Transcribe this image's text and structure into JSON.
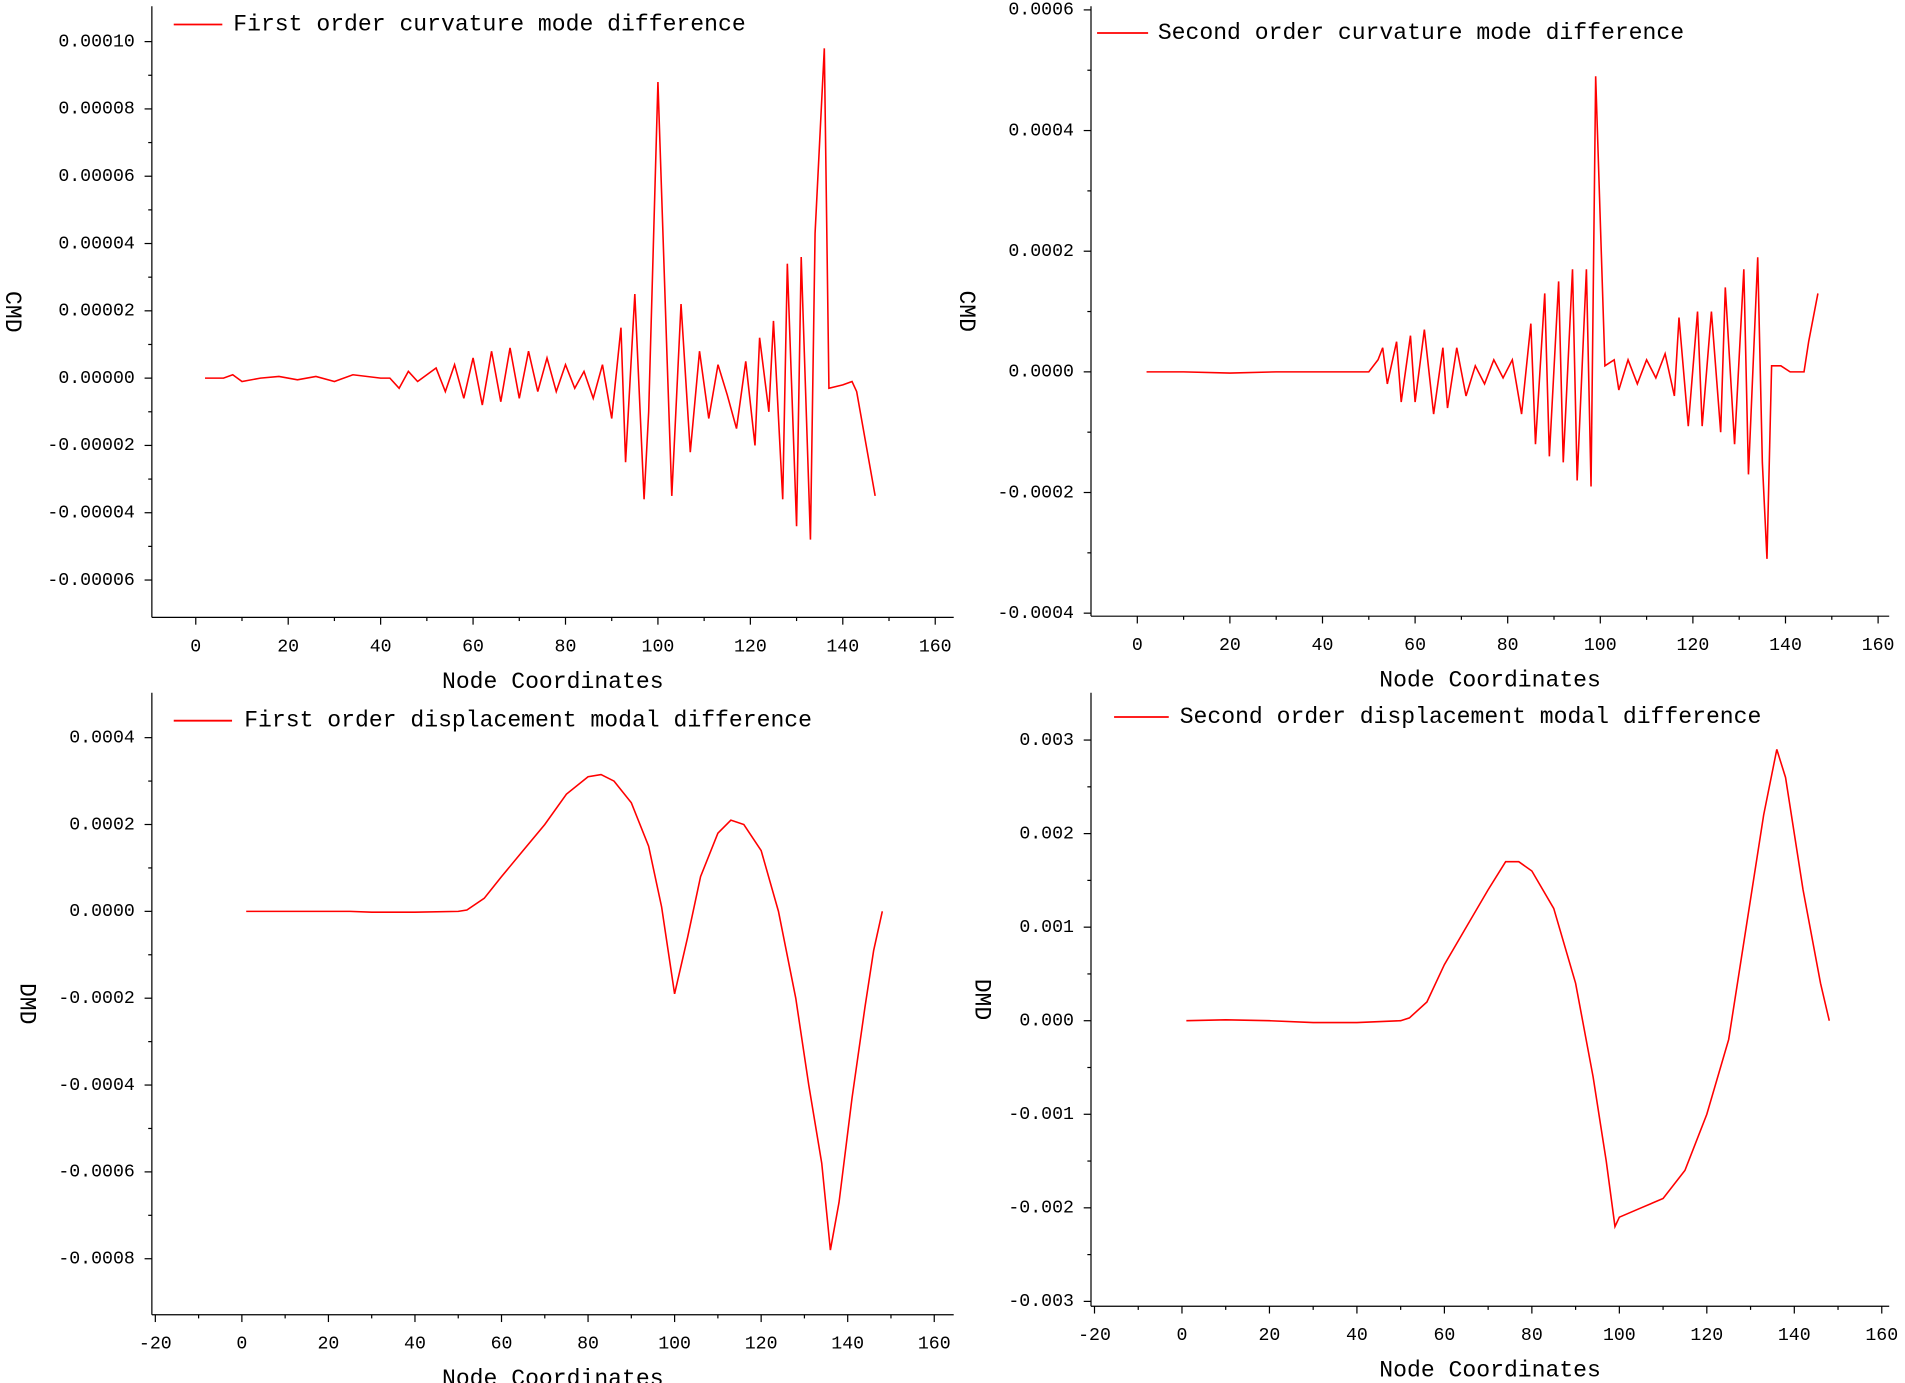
{
  "chart_data": [
    {
      "type": "line",
      "x_label": "Node Coordinates",
      "y_label": "CMD",
      "x": [
        2,
        6,
        8,
        10,
        14,
        18,
        22,
        26,
        30,
        34,
        40,
        42,
        44,
        46,
        48,
        50,
        52,
        54,
        56,
        58,
        60,
        62,
        64,
        66,
        68,
        70,
        72,
        74,
        76,
        78,
        80,
        82,
        84,
        86,
        88,
        90,
        92,
        93,
        95,
        97,
        98,
        100,
        102,
        103,
        105,
        107,
        109,
        111,
        113,
        115,
        117,
        119,
        121,
        122,
        124,
        125,
        127,
        128,
        130,
        131,
        133,
        134,
        136,
        137,
        140,
        142,
        143,
        147
      ],
      "series": [
        {
          "name": "First order curvature mode difference",
          "color": "#ff0000",
          "values": [
            0,
            0,
            1e-06,
            -1e-06,
            0,
            5e-07,
            -5e-07,
            5e-07,
            -1e-06,
            1e-06,
            0,
            0,
            -3e-06,
            2e-06,
            -1e-06,
            1e-06,
            3e-06,
            -4e-06,
            4e-06,
            -6e-06,
            6e-06,
            -8e-06,
            8e-06,
            -7e-06,
            9e-06,
            -6e-06,
            8e-06,
            -4e-06,
            6e-06,
            -4e-06,
            4e-06,
            -3e-06,
            2e-06,
            -6e-06,
            4e-06,
            -1.2e-05,
            1.5e-05,
            -2.5e-05,
            2.5e-05,
            -3.6e-05,
            -1e-05,
            8.8e-05,
            5e-06,
            -3.5e-05,
            2.2e-05,
            -2.2e-05,
            8e-06,
            -1.2e-05,
            4e-06,
            -5e-06,
            -1.5e-05,
            5e-06,
            -2e-05,
            1.2e-05,
            -1e-05,
            1.7e-05,
            -3.6e-05,
            3.4e-05,
            -4.4e-05,
            3.6e-05,
            -4.8e-05,
            4.3e-05,
            9.8e-05,
            -3e-06,
            -2e-06,
            -1e-06,
            -4e-06,
            -3.5e-05
          ]
        }
      ],
      "xlim": [
        -9.5,
        164
      ],
      "ylim": [
        -7.11e-05,
        0.0001105
      ],
      "xticks": [
        0,
        20,
        40,
        60,
        80,
        100,
        120,
        140,
        160
      ],
      "yticks": [
        {
          "value": -6e-05,
          "label": "-0.00006"
        },
        {
          "value": -4e-05,
          "label": "-0.00004"
        },
        {
          "value": -2e-05,
          "label": "-0.00002"
        },
        {
          "value": 0,
          "label": "0.00000"
        },
        {
          "value": 2e-05,
          "label": "0.00002"
        },
        {
          "value": 4e-05,
          "label": "0.00004"
        },
        {
          "value": 6e-05,
          "label": "0.00006"
        },
        {
          "value": 8e-05,
          "label": "0.00008"
        },
        {
          "value": 0.0001,
          "label": "0.00010"
        }
      ]
    },
    {
      "type": "line",
      "x_label": "Node Coordinates",
      "y_label": "CMD",
      "x": [
        2,
        6,
        10,
        20,
        30,
        40,
        50,
        52,
        53,
        54,
        56,
        57,
        59,
        60,
        62,
        64,
        66,
        67,
        69,
        71,
        73,
        75,
        77,
        79,
        81,
        83,
        85,
        86,
        88,
        89,
        91,
        92,
        94,
        95,
        97,
        98,
        99,
        101,
        103,
        104,
        106,
        108,
        110,
        112,
        114,
        116,
        117,
        119,
        121,
        122,
        124,
        126,
        127,
        129,
        131,
        132,
        134,
        135,
        136,
        137,
        139,
        141,
        144,
        145,
        147
      ],
      "series": [
        {
          "name": "Second order curvature mode difference",
          "color": "#ff0000",
          "values": [
            0,
            0,
            0,
            -2e-06,
            0,
            0,
            0,
            2e-05,
            4e-05,
            -2e-05,
            5e-05,
            -5e-05,
            6e-05,
            -5e-05,
            7e-05,
            -7e-05,
            4e-05,
            -6e-05,
            4e-05,
            -4e-05,
            1e-05,
            -2e-05,
            2e-05,
            -1e-05,
            2e-05,
            -7e-05,
            8e-05,
            -0.00012,
            0.00013,
            -0.00014,
            0.00015,
            -0.00015,
            0.00017,
            -0.00018,
            0.00017,
            -0.00019,
            0.00049,
            1e-05,
            2e-05,
            -3e-05,
            2e-05,
            -2e-05,
            2e-05,
            -1e-05,
            3e-05,
            -4e-05,
            9e-05,
            -9e-05,
            0.0001,
            -9e-05,
            0.0001,
            -0.0001,
            0.00014,
            -0.00012,
            0.00017,
            -0.00017,
            0.00019,
            -0.00015,
            -0.00031,
            1e-05,
            1e-05,
            0,
            0,
            5e-05,
            0.00013
          ]
        }
      ],
      "xlim": [
        -10,
        162.4
      ],
      "ylim": [
        -0.000405,
        0.000606
      ],
      "xticks": [
        0,
        20,
        40,
        60,
        80,
        100,
        120,
        140,
        160
      ],
      "yticks": [
        -0.0004,
        -0.0002,
        {
          "value": 0,
          "label": "0.0000"
        },
        0.0002,
        0.0004,
        0.0006
      ]
    },
    {
      "type": "line",
      "x_label": "Node Coordinates",
      "y_label": "DMD",
      "x": [
        1,
        10,
        20,
        25,
        30,
        40,
        50,
        52,
        56,
        60,
        65,
        70,
        75,
        80,
        83,
        86,
        90,
        94,
        97,
        100,
        103,
        106,
        110,
        113,
        116,
        120,
        124,
        128,
        131,
        134,
        136,
        138,
        141,
        144,
        146,
        148
      ],
      "series": [
        {
          "name": "First order displacement modal difference",
          "color": "#ff0000",
          "values": [
            0,
            0,
            0,
            0,
            -2e-06,
            -2e-06,
            0,
            3e-06,
            3e-05,
            8e-05,
            0.00014,
            0.0002,
            0.00027,
            0.00031,
            0.000315,
            0.0003,
            0.00025,
            0.00015,
            1e-05,
            -0.00019,
            -6e-05,
            8e-05,
            0.00018,
            0.00021,
            0.0002,
            0.00014,
            0,
            -0.0002,
            -0.0004,
            -0.00058,
            -0.00078,
            -0.00067,
            -0.00043,
            -0.00022,
            -9e-05,
            0
          ]
        }
      ],
      "xlim": [
        -20.8,
        164.5
      ],
      "ylim": [
        -0.000929,
        0.0005035
      ],
      "xticks": [
        -20,
        0,
        20,
        40,
        60,
        80,
        100,
        120,
        140,
        160
      ],
      "yticks": [
        -0.0008,
        -0.0006,
        -0.0004,
        -0.0002,
        {
          "value": 0,
          "label": "0.0000"
        },
        0.0002,
        0.0004
      ]
    },
    {
      "type": "line",
      "x_label": "Node Coordinates",
      "y_label": "DMD",
      "x": [
        1,
        10,
        20,
        30,
        40,
        50,
        52,
        56,
        60,
        65,
        70,
        74,
        77,
        80,
        85,
        90,
        94,
        97,
        99,
        100,
        105,
        110,
        115,
        120,
        125,
        130,
        133,
        136,
        138,
        142,
        146,
        148
      ],
      "series": [
        {
          "name": "Second order displacement modal difference",
          "color": "#ff0000",
          "values": [
            0,
            1e-05,
            0,
            -2e-05,
            -2e-05,
            0,
            3e-05,
            0.0002,
            0.0006,
            0.001,
            0.0014,
            0.0017,
            0.0017,
            0.0016,
            0.0012,
            0.0004,
            -0.0006,
            -0.0015,
            -0.0022,
            -0.0021,
            -0.002,
            -0.0019,
            -0.0016,
            -0.001,
            -0.0002,
            0.0013,
            0.0022,
            0.0029,
            0.0026,
            0.0014,
            0.0004,
            0
          ]
        }
      ],
      "xlim": [
        -20.8,
        161.7
      ],
      "ylim": [
        -0.003052,
        0.003506
      ],
      "xticks": [
        -20,
        0,
        20,
        40,
        60,
        80,
        100,
        120,
        140,
        160
      ],
      "yticks": [
        -0.003,
        -0.002,
        -0.001,
        {
          "value": 0,
          "label": "0.000"
        },
        0.001,
        0.002,
        0.003
      ]
    }
  ]
}
